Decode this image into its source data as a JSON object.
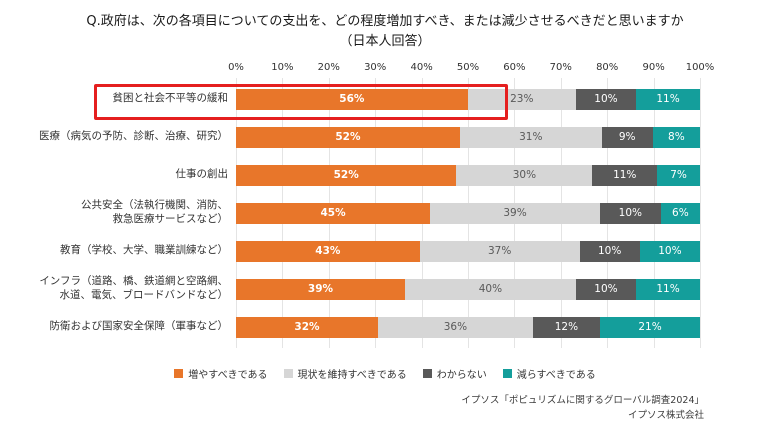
{
  "title": {
    "line1": "Q.政府は、次の各項目についての支出を、どの程度増加すべき、または減少させるべきだと思いますか",
    "line2": "（日本人回答）"
  },
  "chart_data": {
    "type": "bar",
    "stacked": true,
    "orientation": "horizontal",
    "xlim": [
      0,
      100
    ],
    "ticks": [
      "0%",
      "10%",
      "20%",
      "30%",
      "40%",
      "50%",
      "60%",
      "70%",
      "80%",
      "90%",
      "100%"
    ],
    "categories": [
      {
        "lines": [
          "貧困と社会不平等の緩和"
        ]
      },
      {
        "lines": [
          "医療（病気の予防、診断、治療、研究）"
        ]
      },
      {
        "lines": [
          "仕事の創出"
        ]
      },
      {
        "lines": [
          "公共安全（法執行機関、消防、",
          "救急医療サービスなど）"
        ]
      },
      {
        "lines": [
          "教育（学校、大学、職業訓練など）"
        ]
      },
      {
        "lines": [
          "インフラ（道路、橋、鉄道網と空路網、",
          "水道、電気、ブロードバンドなど）"
        ]
      },
      {
        "lines": [
          "防衛および国家安全保障（軍事など）"
        ]
      }
    ],
    "series": [
      {
        "name": "増やすべきである",
        "color": "#e8762a",
        "value_label_color": "#ffffff",
        "value_label_bold": true,
        "values": [
          56,
          52,
          52,
          45,
          43,
          39,
          32
        ]
      },
      {
        "name": "現状を維持すべきである",
        "color": "#d6d6d6",
        "value_label_color": "#595959",
        "value_label_bold": false,
        "values": [
          23,
          31,
          30,
          39,
          37,
          40,
          36
        ]
      },
      {
        "name": "わからない",
        "color": "#595959",
        "value_label_color": "#ffffff",
        "value_label_bold": false,
        "values": [
          10,
          9,
          11,
          10,
          10,
          10,
          12
        ]
      },
      {
        "name": "減らすべきである",
        "color": "#149e9b",
        "value_label_color": "#ffffff",
        "value_label_bold": false,
        "values": [
          11,
          8,
          7,
          6,
          10,
          11,
          21
        ]
      }
    ]
  },
  "highlight": {
    "row_index": 0,
    "color": "#e51f1f"
  },
  "source": {
    "line1": "イプソス「ポピュリズムに関するグローバル調査2024」",
    "line2": "イプソス株式会社"
  }
}
